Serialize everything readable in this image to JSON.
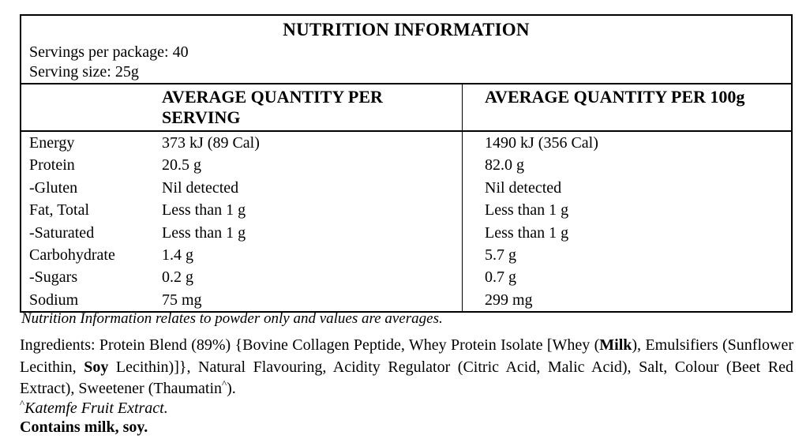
{
  "panel": {
    "title": "NUTRITION INFORMATION",
    "servings_per_package": "Servings per package: 40",
    "serving_size": "Serving size: 25g",
    "col_headers": {
      "per_serving": "AVERAGE QUANTITY PER SERVING",
      "per_100g": "AVERAGE QUANTITY PER 100g"
    },
    "rows": [
      {
        "name": "Energy",
        "per_serving": "373 kJ (89 Cal)",
        "per_100g": "1490 kJ (356 Cal)"
      },
      {
        "name": "Protein",
        "per_serving": "20.5 g",
        "per_100g": "82.0 g"
      },
      {
        "name": "-Gluten",
        "per_serving": "Nil detected",
        "per_100g": "Nil detected"
      },
      {
        "name": "Fat, Total",
        "per_serving": "Less than 1 g",
        "per_100g": "Less than 1 g"
      },
      {
        "name": "-Saturated",
        "per_serving": "Less than 1 g",
        "per_100g": "Less than 1 g"
      },
      {
        "name": "Carbohydrate",
        "per_serving": "1.4 g",
        "per_100g": "5.7 g"
      },
      {
        "name": "-Sugars",
        "per_serving": "0.2 g",
        "per_100g": "0.7 g"
      },
      {
        "name": "Sodium",
        "per_serving": "75 mg",
        "per_100g": "299 mg"
      }
    ]
  },
  "notes": {
    "averages_note": "Nutrition Information relates to powder only and values are averages.",
    "katemfe_caret": "^",
    "katemfe_note": "Katemfe Fruit Extract.",
    "contains": "Contains milk, soy."
  },
  "ingredients": {
    "start": "Ingredients: Protein Blend (89%) {Bovine Collagen Peptide, Whey Protein Isolate [Whey (",
    "allergen_milk": "Milk",
    "mid_1": "), Emulsifiers (Sunflower Lecithin, ",
    "allergen_soy": "Soy",
    "mid_2": " Lecithin)]}, Natural Flavouring, Acidity Regulator (Citric Acid, Malic Acid), Salt, Colour (Beet Red Extract), Sweetener (Thaumatin",
    "caret": "^",
    "end": ")."
  },
  "colors": {
    "text": "#000000",
    "background": "#ffffff",
    "border": "#000000"
  }
}
